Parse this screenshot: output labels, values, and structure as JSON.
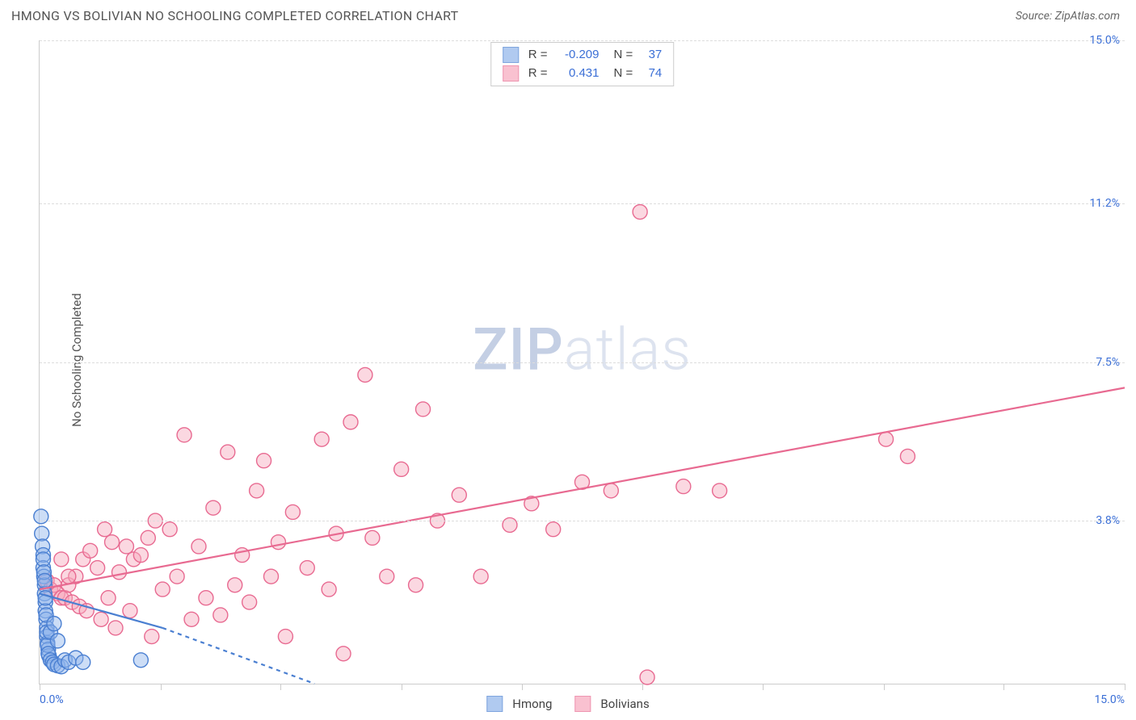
{
  "header": {
    "title": "HMONG VS BOLIVIAN NO SCHOOLING COMPLETED CORRELATION CHART",
    "source": "Source: ZipAtlas.com"
  },
  "watermark": {
    "zip": "ZIP",
    "atlas": "atlas"
  },
  "chart": {
    "type": "scatter",
    "ylabel": "No Schooling Completed",
    "xlim": [
      0,
      15.0
    ],
    "ylim": [
      0,
      15.0
    ],
    "xtick_positions": [
      0,
      1.67,
      3.33,
      5.0,
      6.67,
      8.33,
      10.0,
      11.67,
      13.33,
      15.0
    ],
    "xtick_labels_shown": {
      "0": "0.0%",
      "15": "15.0%"
    },
    "yticks": [
      {
        "pos": 3.8,
        "label": "3.8%"
      },
      {
        "pos": 7.5,
        "label": "7.5%"
      },
      {
        "pos": 11.2,
        "label": "11.2%"
      },
      {
        "pos": 15.0,
        "label": "15.0%"
      }
    ],
    "background_color": "#ffffff",
    "grid_color": "#dddddd",
    "axis_color": "#cccccc",
    "label_color": "#3b6fd6",
    "marker_radius": 9,
    "marker_stroke_width": 1.4,
    "line_width": 2.2,
    "series": {
      "hmong": {
        "label": "Hmong",
        "fill": "#8fb4ea",
        "fill_opacity": 0.45,
        "stroke": "#4a7fd1",
        "R": "-0.209",
        "N": "37",
        "regression": {
          "x1": 0,
          "y1": 2.1,
          "x2": 1.7,
          "y2": 1.3,
          "dash_extend_x2": 3.8,
          "dash_extend_y2": 0
        },
        "points": [
          [
            0.02,
            3.9
          ],
          [
            0.03,
            3.5
          ],
          [
            0.04,
            3.2
          ],
          [
            0.05,
            3.0
          ],
          [
            0.05,
            2.7
          ],
          [
            0.06,
            2.5
          ],
          [
            0.07,
            2.3
          ],
          [
            0.07,
            2.1
          ],
          [
            0.08,
            1.9
          ],
          [
            0.08,
            1.7
          ],
          [
            0.09,
            1.5
          ],
          [
            0.1,
            1.3
          ],
          [
            0.1,
            1.1
          ],
          [
            0.11,
            0.95
          ],
          [
            0.12,
            0.8
          ],
          [
            0.13,
            0.65
          ],
          [
            0.05,
            2.9
          ],
          [
            0.06,
            2.6
          ],
          [
            0.07,
            2.4
          ],
          [
            0.08,
            2.0
          ],
          [
            0.09,
            1.6
          ],
          [
            0.1,
            1.2
          ],
          [
            0.11,
            0.9
          ],
          [
            0.12,
            0.7
          ],
          [
            0.15,
            0.55
          ],
          [
            0.18,
            0.5
          ],
          [
            0.2,
            0.45
          ],
          [
            0.25,
            0.42
          ],
          [
            0.3,
            0.4
          ],
          [
            0.35,
            0.55
          ],
          [
            0.4,
            0.5
          ],
          [
            0.15,
            1.2
          ],
          [
            0.2,
            1.4
          ],
          [
            0.25,
            1.0
          ],
          [
            0.5,
            0.6
          ],
          [
            0.6,
            0.5
          ],
          [
            1.4,
            0.55
          ]
        ]
      },
      "bolivians": {
        "label": "Bolivians",
        "fill": "#f7a8bd",
        "fill_opacity": 0.45,
        "stroke": "#e86a91",
        "R": "0.431",
        "N": "74",
        "regression": {
          "x1": 0,
          "y1": 2.2,
          "x2": 15.0,
          "y2": 6.9
        },
        "points": [
          [
            0.1,
            2.4
          ],
          [
            0.15,
            2.2
          ],
          [
            0.2,
            2.3
          ],
          [
            0.25,
            2.1
          ],
          [
            0.3,
            2.0
          ],
          [
            0.35,
            2.0
          ],
          [
            0.4,
            2.3
          ],
          [
            0.45,
            1.9
          ],
          [
            0.5,
            2.5
          ],
          [
            0.55,
            1.8
          ],
          [
            0.6,
            2.9
          ],
          [
            0.65,
            1.7
          ],
          [
            0.7,
            3.1
          ],
          [
            0.8,
            2.7
          ],
          [
            0.85,
            1.5
          ],
          [
            0.9,
            3.6
          ],
          [
            0.95,
            2.0
          ],
          [
            1.0,
            3.3
          ],
          [
            1.05,
            1.3
          ],
          [
            1.1,
            2.6
          ],
          [
            1.2,
            3.2
          ],
          [
            1.25,
            1.7
          ],
          [
            1.3,
            2.9
          ],
          [
            1.4,
            3.0
          ],
          [
            1.5,
            3.4
          ],
          [
            1.55,
            1.1
          ],
          [
            1.6,
            3.8
          ],
          [
            1.7,
            2.2
          ],
          [
            1.8,
            3.6
          ],
          [
            1.9,
            2.5
          ],
          [
            2.0,
            5.8
          ],
          [
            2.1,
            1.5
          ],
          [
            2.2,
            3.2
          ],
          [
            2.3,
            2.0
          ],
          [
            2.4,
            4.1
          ],
          [
            2.5,
            1.6
          ],
          [
            2.6,
            5.4
          ],
          [
            2.7,
            2.3
          ],
          [
            2.8,
            3.0
          ],
          [
            2.9,
            1.9
          ],
          [
            3.0,
            4.5
          ],
          [
            3.1,
            5.2
          ],
          [
            3.2,
            2.5
          ],
          [
            3.3,
            3.3
          ],
          [
            3.4,
            1.1
          ],
          [
            3.5,
            4.0
          ],
          [
            3.7,
            2.7
          ],
          [
            3.9,
            5.7
          ],
          [
            4.0,
            2.2
          ],
          [
            4.1,
            3.5
          ],
          [
            4.2,
            0.7
          ],
          [
            4.3,
            6.1
          ],
          [
            4.5,
            7.2
          ],
          [
            4.6,
            3.4
          ],
          [
            4.8,
            2.5
          ],
          [
            5.0,
            5.0
          ],
          [
            5.2,
            2.3
          ],
          [
            5.3,
            6.4
          ],
          [
            5.5,
            3.8
          ],
          [
            5.8,
            4.4
          ],
          [
            6.1,
            2.5
          ],
          [
            6.5,
            3.7
          ],
          [
            6.8,
            4.2
          ],
          [
            7.1,
            3.6
          ],
          [
            7.5,
            4.7
          ],
          [
            7.9,
            4.5
          ],
          [
            8.3,
            11.0
          ],
          [
            8.4,
            0.15
          ],
          [
            8.9,
            4.6
          ],
          [
            9.4,
            4.5
          ],
          [
            11.7,
            5.7
          ],
          [
            12.0,
            5.3
          ],
          [
            0.3,
            2.9
          ],
          [
            0.4,
            2.5
          ]
        ]
      }
    }
  },
  "stats_box": {
    "rows": [
      {
        "swatch_fill": "#8fb4ea",
        "swatch_stroke": "#4a7fd1",
        "R_label": "R =",
        "R": "-0.209",
        "N_label": "N =",
        "N": "37"
      },
      {
        "swatch_fill": "#f7a8bd",
        "swatch_stroke": "#e86a91",
        "R_label": "R =",
        "R": "0.431",
        "N_label": "N =",
        "N": "74"
      }
    ]
  },
  "legend": {
    "items": [
      {
        "fill": "#8fb4ea",
        "stroke": "#4a7fd1",
        "label": "Hmong"
      },
      {
        "fill": "#f7a8bd",
        "stroke": "#e86a91",
        "label": "Bolivians"
      }
    ]
  }
}
